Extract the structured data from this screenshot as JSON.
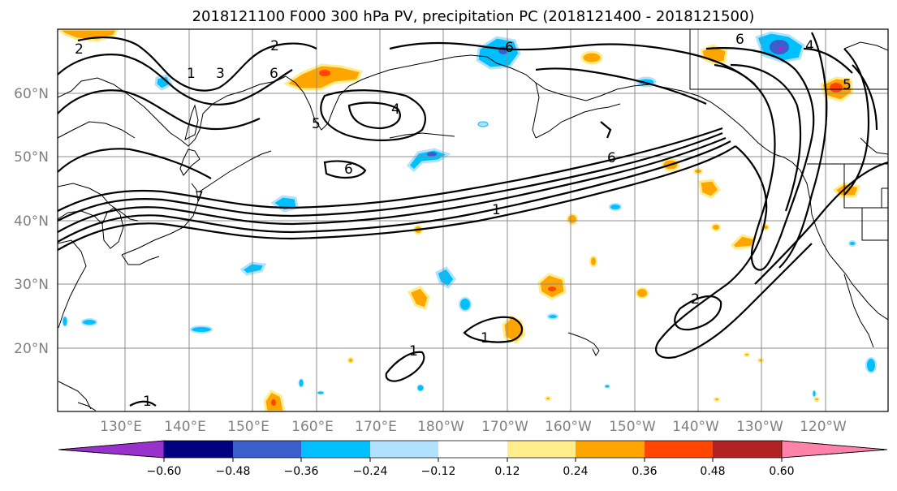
{
  "title": "2018121100 F000 300 hPa PV, precipitation PC (2018121400 - 2018121500)",
  "lat_labels": [
    "60°N",
    "50°N",
    "40°N",
    "30°N",
    "20°N"
  ],
  "lon_labels": [
    "130°E",
    "140°E",
    "150°E",
    "160°E",
    "170°E",
    "180°W",
    "170°W",
    "160°W",
    "150°W",
    "140°W",
    "130°W",
    "120°W"
  ],
  "colorbar": {
    "ticks": [
      "−0.60",
      "−0.48",
      "−0.36",
      "−0.24",
      "−0.12",
      "0.12",
      "0.24",
      "0.36",
      "0.48",
      "0.60"
    ],
    "colors": [
      "#9932cc",
      "#000080",
      "#3a5fcd",
      "#00bfff",
      "#b0e2ff",
      "#ffffff",
      "#ffec8b",
      "#ffa500",
      "#ff4500",
      "#b22222",
      "#ff82ab"
    ]
  },
  "pv_contour_labels": [
    "2",
    "1",
    "3",
    "6",
    "4",
    "5",
    "6",
    "6",
    "7",
    "1",
    "2",
    "1",
    "1",
    "1",
    "4",
    "6",
    "5"
  ],
  "precip_colors": {
    "light_blue": "#b0e2ff",
    "cyan": "#00bfff",
    "blue": "#3a5fcd",
    "yellow": "#ffec8b",
    "orange": "#ffa500",
    "red": "#ff4500"
  }
}
